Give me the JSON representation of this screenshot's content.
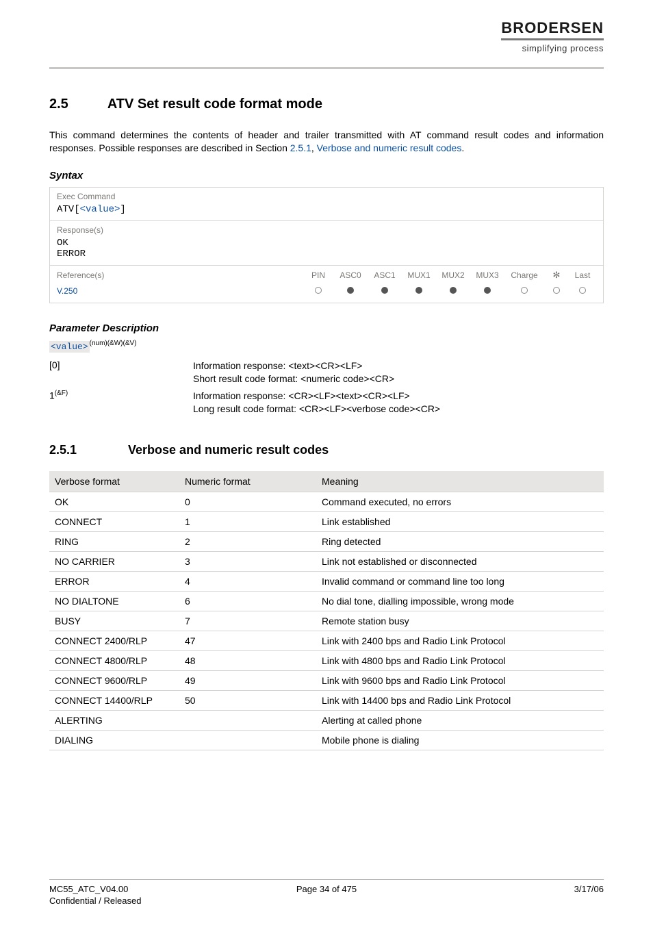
{
  "header": {
    "brand": "BRODERSEN",
    "tagline": "simplifying process"
  },
  "section": {
    "number": "2.5",
    "title": "ATV   Set result code format mode",
    "intro_pre": "This command determines the contents of header and trailer transmitted with AT command result codes and information responses. Possible responses are described in Section ",
    "intro_link1": "2.5.1",
    "intro_sep": ", ",
    "intro_link2": "Verbose and numeric result codes",
    "intro_post": "."
  },
  "syntax": {
    "heading": "Syntax",
    "exec_label": "Exec Command",
    "exec_cmd_pre": "ATV[",
    "exec_cmd_val": "<value>",
    "exec_cmd_post": "]",
    "resp_label": "Response(s)",
    "resp1": "OK",
    "resp2": "ERROR",
    "ref_label": "Reference(s)",
    "ref_value": "V.250",
    "cols": [
      "PIN",
      "ASC0",
      "ASC1",
      "MUX1",
      "MUX2",
      "MUX3",
      "Charge",
      "⚙",
      "Last"
    ],
    "dots": [
      "open",
      "filled",
      "filled",
      "filled",
      "filled",
      "filled",
      "open",
      "open",
      "open"
    ]
  },
  "param": {
    "heading": "Parameter Description",
    "token": "<value>",
    "token_sup": "(num)(&W)(&V)",
    "rows": [
      {
        "k": "[0]",
        "d": "Information response: <text><CR><LF>\nShort result code format: <numeric code><CR>"
      },
      {
        "k": "1",
        "ksup": "(&F)",
        "d": "Information response: <CR><LF><text><CR><LF>\nLong result code format: <CR><LF><verbose code><CR>"
      }
    ]
  },
  "subsection": {
    "number": "2.5.1",
    "title": "Verbose and numeric result codes"
  },
  "codes": {
    "headers": [
      "Verbose format",
      "Numeric format",
      "Meaning"
    ],
    "rows": [
      [
        "OK",
        "0",
        "Command executed, no errors"
      ],
      [
        "CONNECT",
        "1",
        "Link established"
      ],
      [
        "RING",
        "2",
        "Ring detected"
      ],
      [
        "NO CARRIER",
        "3",
        "Link not established or disconnected"
      ],
      [
        "ERROR",
        "4",
        "Invalid command or command line too long"
      ],
      [
        "NO DIALTONE",
        "6",
        "No dial tone, dialling impossible, wrong mode"
      ],
      [
        "BUSY",
        "7",
        "Remote station busy"
      ],
      [
        "CONNECT 2400/RLP",
        "47",
        "Link with 2400 bps and Radio Link Protocol"
      ],
      [
        "CONNECT 4800/RLP",
        "48",
        "Link with 4800 bps and Radio Link Protocol"
      ],
      [
        "CONNECT 9600/RLP",
        "49",
        "Link with 9600 bps and Radio Link Protocol"
      ],
      [
        "CONNECT 14400/RLP",
        "50",
        "Link with 14400 bps and Radio Link Protocol"
      ],
      [
        "ALERTING",
        "",
        "Alerting at called phone"
      ],
      [
        "DIALING",
        "",
        "Mobile phone is dialing"
      ]
    ]
  },
  "footer": {
    "doc": "MC55_ATC_V04.00",
    "page": "Page 34 of 475",
    "date": "3/17/06",
    "conf": "Confidential / Released"
  }
}
